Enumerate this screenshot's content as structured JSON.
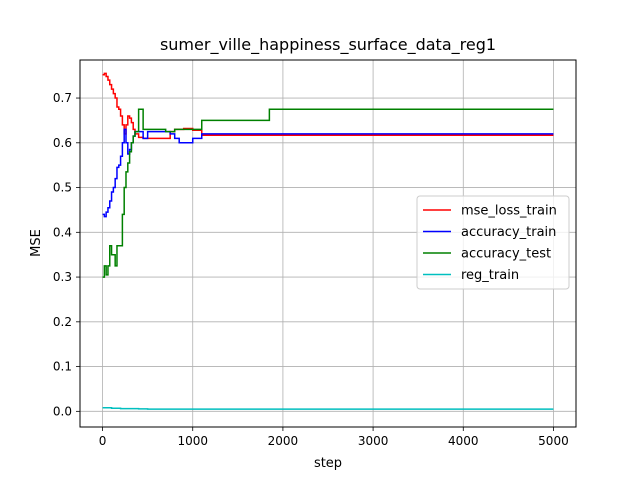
{
  "chart_data": {
    "type": "line",
    "title": "sumer_ville_happiness_surface_data_reg1",
    "xlabel": "step",
    "ylabel": "MSE",
    "xlim": [
      -250,
      5250
    ],
    "ylim": [
      -0.035,
      0.785
    ],
    "xticks": [
      0,
      1000,
      2000,
      3000,
      4000,
      5000
    ],
    "xtick_labels": [
      "0",
      "1000",
      "2000",
      "3000",
      "4000",
      "5000"
    ],
    "yticks": [
      0.0,
      0.1,
      0.2,
      0.3,
      0.4,
      0.5,
      0.6,
      0.7
    ],
    "ytick_labels": [
      "0.0",
      "0.1",
      "0.2",
      "0.3",
      "0.4",
      "0.5",
      "0.6",
      "0.7"
    ],
    "grid": true,
    "legend_position": "center-right",
    "series": [
      {
        "name": "mse_loss_train",
        "color": "#ff0000",
        "x": [
          0,
          20,
          40,
          60,
          80,
          100,
          120,
          140,
          160,
          180,
          200,
          220,
          240,
          260,
          280,
          300,
          320,
          340,
          360,
          400,
          450,
          500,
          600,
          700,
          750,
          800,
          900,
          1000,
          1100,
          1500,
          2000,
          3000,
          4000,
          5000
        ],
        "y": [
          0.752,
          0.755,
          0.748,
          0.74,
          0.73,
          0.72,
          0.71,
          0.7,
          0.68,
          0.675,
          0.66,
          0.64,
          0.62,
          0.64,
          0.66,
          0.655,
          0.645,
          0.63,
          0.62,
          0.612,
          0.61,
          0.61,
          0.61,
          0.61,
          0.625,
          0.63,
          0.632,
          0.628,
          0.617,
          0.617,
          0.617,
          0.617,
          0.617,
          0.617
        ]
      },
      {
        "name": "accuracy_train",
        "color": "#0000ff",
        "x": [
          0,
          20,
          40,
          60,
          80,
          100,
          120,
          140,
          160,
          180,
          200,
          220,
          240,
          260,
          280,
          300,
          320,
          340,
          360,
          400,
          450,
          500,
          600,
          700,
          750,
          800,
          850,
          900,
          1000,
          1100,
          1500,
          2000,
          3000,
          4000,
          5000
        ],
        "y": [
          0.44,
          0.435,
          0.445,
          0.455,
          0.47,
          0.49,
          0.5,
          0.52,
          0.545,
          0.55,
          0.57,
          0.6,
          0.63,
          0.6,
          0.575,
          0.585,
          0.6,
          0.615,
          0.625,
          0.625,
          0.61,
          0.625,
          0.625,
          0.625,
          0.62,
          0.61,
          0.6,
          0.6,
          0.61,
          0.62,
          0.62,
          0.62,
          0.62,
          0.62,
          0.62
        ]
      },
      {
        "name": "accuracy_test",
        "color": "#008000",
        "x": [
          0,
          20,
          40,
          60,
          80,
          100,
          120,
          140,
          160,
          180,
          200,
          220,
          240,
          260,
          280,
          300,
          320,
          340,
          360,
          400,
          450,
          500,
          600,
          700,
          800,
          900,
          1000,
          1100,
          1500,
          1800,
          1850,
          2000,
          3000,
          4000,
          5000
        ],
        "y": [
          0.3,
          0.325,
          0.305,
          0.325,
          0.37,
          0.35,
          0.35,
          0.325,
          0.37,
          0.37,
          0.37,
          0.44,
          0.5,
          0.535,
          0.555,
          0.58,
          0.6,
          0.615,
          0.625,
          0.675,
          0.63,
          0.63,
          0.63,
          0.625,
          0.63,
          0.63,
          0.63,
          0.65,
          0.65,
          0.65,
          0.675,
          0.675,
          0.675,
          0.675,
          0.675
        ]
      },
      {
        "name": "reg_train",
        "color": "#00bfbf",
        "x": [
          0,
          100,
          200,
          300,
          400,
          500,
          600,
          800,
          1000,
          1500,
          2000,
          3000,
          4000,
          5000
        ],
        "y": [
          0.008,
          0.007,
          0.006,
          0.006,
          0.0055,
          0.005,
          0.005,
          0.005,
          0.005,
          0.005,
          0.005,
          0.005,
          0.005,
          0.005
        ]
      }
    ]
  }
}
